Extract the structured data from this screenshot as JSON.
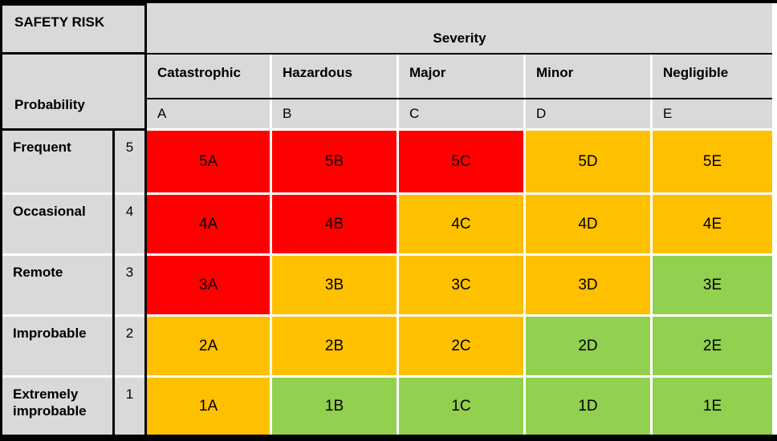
{
  "colors": {
    "high": "#ff0000",
    "moderate": "#ffc000",
    "low": "#92d050",
    "header_bg": "#d9d9d9",
    "gridline": "#ffffff",
    "border": "#000000"
  },
  "chart_data": {
    "type": "heatmap",
    "title": "SAFETY RISK",
    "column_axis_label": "Severity",
    "row_axis_label": "Probability",
    "columns": [
      {
        "name": "Catastrophic",
        "code": "A"
      },
      {
        "name": "Hazardous",
        "code": "B"
      },
      {
        "name": "Major",
        "code": "C"
      },
      {
        "name": "Minor",
        "code": "D"
      },
      {
        "name": "Negligible",
        "code": "E"
      }
    ],
    "rows": [
      {
        "name": "Frequent",
        "level": "5",
        "cells": [
          {
            "id": "5A",
            "risk": "high"
          },
          {
            "id": "5B",
            "risk": "high"
          },
          {
            "id": "5C",
            "risk": "high"
          },
          {
            "id": "5D",
            "risk": "moderate"
          },
          {
            "id": "5E",
            "risk": "moderate"
          }
        ]
      },
      {
        "name": "Occasional",
        "level": "4",
        "cells": [
          {
            "id": "4A",
            "risk": "high"
          },
          {
            "id": "4B",
            "risk": "high"
          },
          {
            "id": "4C",
            "risk": "moderate"
          },
          {
            "id": "4D",
            "risk": "moderate"
          },
          {
            "id": "4E",
            "risk": "moderate"
          }
        ]
      },
      {
        "name": "Remote",
        "level": "3",
        "cells": [
          {
            "id": "3A",
            "risk": "high"
          },
          {
            "id": "3B",
            "risk": "moderate"
          },
          {
            "id": "3C",
            "risk": "moderate"
          },
          {
            "id": "3D",
            "risk": "moderate"
          },
          {
            "id": "3E",
            "risk": "low"
          }
        ]
      },
      {
        "name": "Improbable",
        "level": "2",
        "cells": [
          {
            "id": "2A",
            "risk": "moderate"
          },
          {
            "id": "2B",
            "risk": "moderate"
          },
          {
            "id": "2C",
            "risk": "moderate"
          },
          {
            "id": "2D",
            "risk": "low"
          },
          {
            "id": "2E",
            "risk": "low"
          }
        ]
      },
      {
        "name": "Extremely improbable",
        "level": "1",
        "cells": [
          {
            "id": "1A",
            "risk": "moderate"
          },
          {
            "id": "1B",
            "risk": "low"
          },
          {
            "id": "1C",
            "risk": "low"
          },
          {
            "id": "1D",
            "risk": "low"
          },
          {
            "id": "1E",
            "risk": "low"
          }
        ]
      }
    ]
  }
}
